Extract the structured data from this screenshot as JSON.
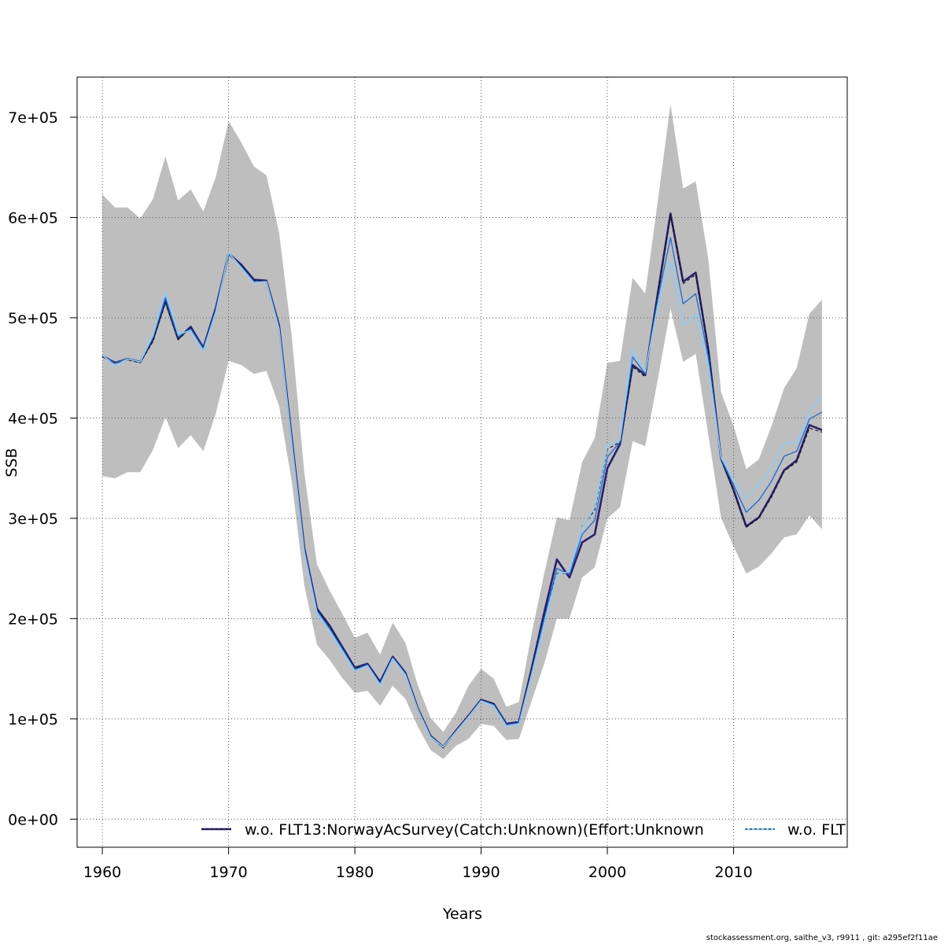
{
  "chart_data": {
    "type": "line",
    "title": "",
    "xlabel": "Years",
    "ylabel": "SSB",
    "xlim": [
      1958,
      2019
    ],
    "ylim": [
      -28000,
      740000
    ],
    "xticks": [
      1960,
      1970,
      1980,
      1990,
      2000,
      2010
    ],
    "xtick_labels": [
      "1960",
      "1970",
      "1980",
      "1990",
      "2000",
      "2010"
    ],
    "yticks": [
      0,
      100000,
      200000,
      300000,
      400000,
      500000,
      600000,
      700000
    ],
    "ytick_labels": [
      "0e+00",
      "1e+05",
      "2e+05",
      "3e+05",
      "4e+05",
      "5e+05",
      "6e+05",
      "7e+05"
    ],
    "grid": true,
    "legend_position": "bottom",
    "x": [
      1960,
      1961,
      1962,
      1963,
      1964,
      1965,
      1966,
      1967,
      1968,
      1969,
      1970,
      1971,
      1972,
      1973,
      1974,
      1975,
      1976,
      1977,
      1978,
      1979,
      1980,
      1981,
      1982,
      1983,
      1984,
      1985,
      1986,
      1987,
      1988,
      1989,
      1990,
      1991,
      1992,
      1993,
      1994,
      1995,
      1996,
      1997,
      1998,
      1999,
      2000,
      2001,
      2002,
      2003,
      2004,
      2005,
      2006,
      2007,
      2008,
      2009,
      2010,
      2011,
      2012,
      2013,
      2014,
      2015,
      2016,
      2017
    ],
    "band": {
      "upper": [
        623000,
        610000,
        610000,
        599000,
        618000,
        661000,
        617000,
        628000,
        606000,
        641000,
        696000,
        675000,
        651000,
        642000,
        585000,
        482000,
        345000,
        254000,
        228000,
        205000,
        181000,
        186000,
        164000,
        196000,
        176000,
        133000,
        101000,
        87000,
        106000,
        133000,
        150000,
        140000,
        112000,
        117000,
        185000,
        245000,
        301000,
        298000,
        356000,
        380000,
        455000,
        457000,
        540000,
        524000,
        617000,
        713000,
        629000,
        636000,
        558000,
        426000,
        392000,
        349000,
        359000,
        392000,
        430000,
        450000,
        504000,
        518000
      ],
      "lower": [
        342000,
        340000,
        346000,
        346000,
        368000,
        401000,
        370000,
        383000,
        367000,
        405000,
        457000,
        453000,
        444000,
        447000,
        412000,
        337000,
        233000,
        174000,
        159000,
        141000,
        126000,
        128000,
        113000,
        133000,
        120000,
        92000,
        69000,
        60000,
        73000,
        80000,
        95000,
        93000,
        79000,
        80000,
        118000,
        155000,
        200000,
        200000,
        241000,
        251000,
        300000,
        311000,
        377000,
        372000,
        439000,
        509000,
        456000,
        464000,
        383000,
        301000,
        272000,
        245000,
        252000,
        265000,
        281000,
        284000,
        303000,
        289000
      ]
    },
    "series": [
      {
        "name": "w.o. FLT13:NorwayAcSurvey(Catch:Unknown)(Effort:Unknown",
        "color": "#2a1f6e",
        "values": [
          462000,
          455000,
          459000,
          456000,
          478000,
          517000,
          479000,
          491000,
          470000,
          510000,
          564000,
          553000,
          538000,
          537000,
          492000,
          380000,
          270000,
          210000,
          193000,
          172000,
          151000,
          155000,
          137000,
          162000,
          146000,
          110000,
          83000,
          72000,
          88000,
          103000,
          119000,
          115000,
          95000,
          97000,
          150000,
          206000,
          259000,
          241000,
          276000,
          284000,
          350000,
          374000,
          453000,
          443000,
          525000,
          604000,
          536000,
          545000,
          468000,
          360000,
          328000,
          292000,
          301000,
          323000,
          348000,
          358000,
          393000,
          388000
        ]
      },
      {
        "name": "w.o. FLT",
        "color": "#87cefa",
        "values": [
          463000,
          452000,
          459000,
          456000,
          482000,
          525000,
          484000,
          487000,
          467000,
          506000,
          565000,
          550000,
          535000,
          536000,
          489000,
          376000,
          266000,
          206000,
          188000,
          168000,
          148000,
          153000,
          134000,
          160000,
          144000,
          109000,
          82000,
          72000,
          87000,
          102000,
          118000,
          113000,
          93000,
          95000,
          144000,
          195000,
          244000,
          247000,
          291000,
          311000,
          372000,
          378000,
          469000,
          446000,
          513000,
          556000,
          493000,
          503000,
          453000,
          361000,
          338000,
          320000,
          334000,
          350000,
          375000,
          375000,
          405000,
          423000
        ]
      }
    ],
    "extra_series": [
      {
        "name": "",
        "color": "#111111",
        "style": "dashed",
        "values": [
          461000,
          456000,
          458000,
          455000,
          476000,
          515000,
          478000,
          490000,
          469000,
          508000,
          563000,
          552000,
          537000,
          536000,
          491000,
          379000,
          269000,
          209000,
          192000,
          171000,
          150000,
          154000,
          136000,
          161000,
          145000,
          109000,
          82000,
          71000,
          87000,
          102000,
          118000,
          114000,
          94000,
          96000,
          148000,
          203000,
          245000,
          245000,
          292000,
          308000,
          369000,
          376000,
          451000,
          441000,
          523000,
          602000,
          534000,
          543000,
          466000,
          359000,
          327000,
          291000,
          300000,
          321000,
          347000,
          356000,
          390000,
          386000
        ]
      },
      {
        "name": "",
        "color": "#1e6fd9",
        "style": "solid",
        "values": [
          462000,
          455000,
          459000,
          456000,
          480000,
          520000,
          481000,
          489000,
          469000,
          508000,
          564000,
          551000,
          536000,
          536000,
          490000,
          378000,
          268000,
          208000,
          190000,
          170000,
          149000,
          154000,
          135000,
          161000,
          145000,
          109000,
          82000,
          72000,
          87000,
          102000,
          118000,
          114000,
          94000,
          96000,
          146000,
          200000,
          250000,
          244000,
          284000,
          298000,
          361000,
          376000,
          461000,
          444000,
          519000,
          580000,
          514000,
          524000,
          460000,
          360000,
          333000,
          306000,
          318000,
          337000,
          362000,
          367000,
          399000,
          406000
        ]
      }
    ]
  },
  "footer": "stockassessment.org, saithe_v3, r9911 , git: a295ef2f11ae"
}
